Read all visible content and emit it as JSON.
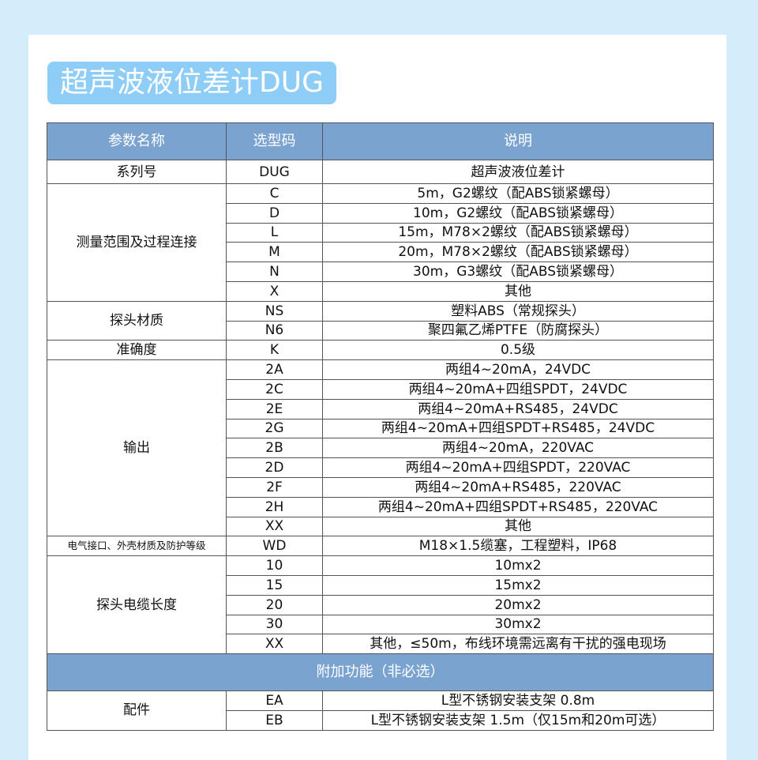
{
  "title": "超声波液位差计DUG",
  "colors": {
    "background": "#d5edfb",
    "title_bg": "#8ecdf5",
    "header_bg": "#7aa3cf"
  },
  "headers": [
    "参数名称",
    "选型码",
    "说明"
  ],
  "groups": [
    {
      "name": "系列号",
      "rows": [
        [
          "DUG",
          "超声波液位差计"
        ]
      ]
    },
    {
      "name": "测量范围及过程连接",
      "rows": [
        [
          "C",
          "5m，G2螺纹（配ABS锁紧螺母）"
        ],
        [
          "D",
          "10m，G2螺纹（配ABS锁紧螺母）"
        ],
        [
          "L",
          "15m，M78×2螺纹（配ABS锁紧螺母）"
        ],
        [
          "M",
          "20m，M78×2螺纹（配ABS锁紧螺母）"
        ],
        [
          "N",
          "30m，G3螺纹（配ABS锁紧螺母）"
        ],
        [
          "X",
          "其他"
        ]
      ]
    },
    {
      "name": "探头材质",
      "rows": [
        [
          "NS",
          "塑料ABS（常规探头）"
        ],
        [
          "N6",
          "聚四氟乙烯PTFE（防腐探头）"
        ]
      ]
    },
    {
      "name": "准确度",
      "rows": [
        [
          "K",
          "0.5级"
        ]
      ]
    },
    {
      "name": "输出",
      "rows": [
        [
          "2A",
          "两组4~20mA，24VDC"
        ],
        [
          "2C",
          "两组4~20mA+四组SPDT，24VDC"
        ],
        [
          "2E",
          "两组4~20mA+RS485，24VDC"
        ],
        [
          "2G",
          "两组4~20mA+四组SPDT+RS485，24VDC"
        ],
        [
          "2B",
          "两组4~20mA，220VAC"
        ],
        [
          "2D",
          "两组4~20mA+四组SPDT，220VAC"
        ],
        [
          "2F",
          "两组4~20mA+RS485，220VAC"
        ],
        [
          "2H",
          "两组4~20mA+四组SPDT+RS485，220VAC"
        ],
        [
          "XX",
          "其他"
        ]
      ]
    },
    {
      "name": "电气接口、外壳材质及防护等级",
      "small": true,
      "rows": [
        [
          "WD",
          "M18×1.5缆塞，工程塑料，IP68"
        ]
      ]
    },
    {
      "name": "探头电缆长度",
      "rows": [
        [
          "10",
          "10mx2"
        ],
        [
          "15",
          "15mx2"
        ],
        [
          "20",
          "20mx2"
        ],
        [
          "30",
          "30mx2"
        ],
        [
          "XX",
          "其他，≤50m，布线环境需远离有干扰的强电现场"
        ]
      ]
    }
  ],
  "subheader": "附加功能（非必选）",
  "extra_groups": [
    {
      "name": "配件",
      "rows": [
        [
          "EA",
          "L型不锈钢安装支架 0.8m"
        ],
        [
          "EB",
          "L型不锈钢安装支架 1.5m（仅15m和20m可选）"
        ]
      ]
    }
  ]
}
